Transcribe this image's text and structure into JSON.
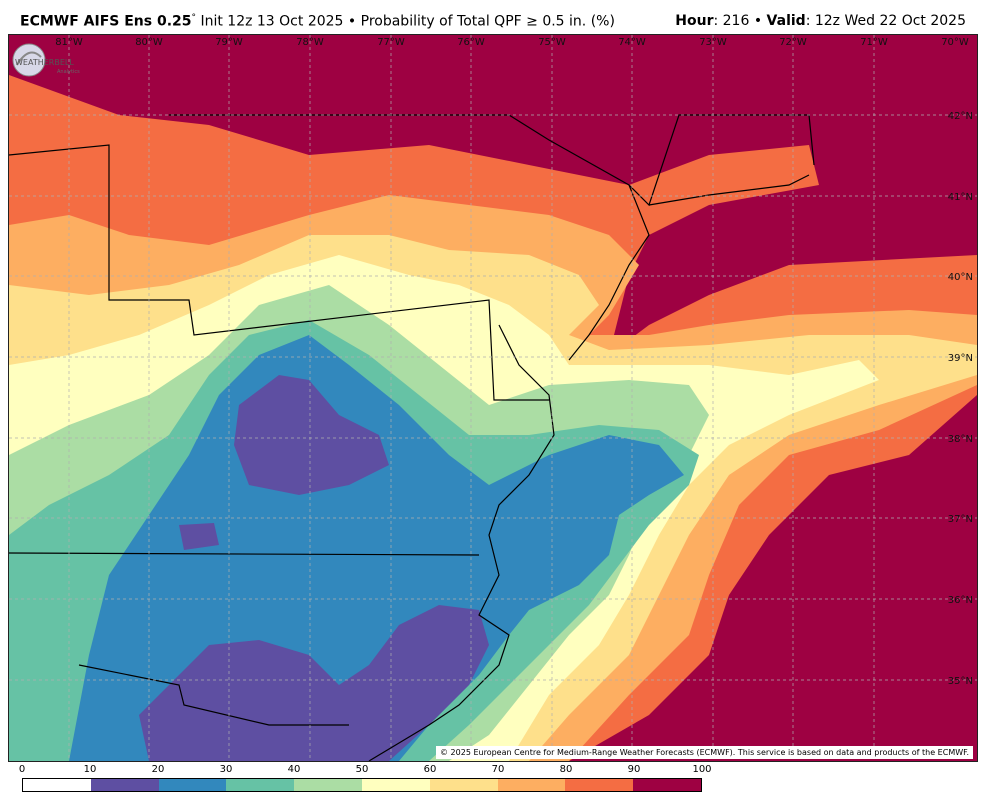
{
  "header": {
    "model": "ECMWF AIFS Ens 0.25",
    "degree": "°",
    "init": "Init 12z 13 Oct 2025",
    "bullet": "•",
    "field": "Probability of Total QPF  ≥  0.5 in. (%)",
    "hour_label": "Hour",
    "hour_value": ": 216",
    "valid_label": "Valid",
    "valid_value": ": 12z Wed 22 Oct 2025"
  },
  "map": {
    "longitudes": [
      "81°W",
      "80°W",
      "79°W",
      "78°W",
      "77°W",
      "76°W",
      "75°W",
      "74°W",
      "73°W",
      "72°W",
      "71°W",
      "70°W"
    ],
    "latitudes": [
      "42°N",
      "41°N",
      "40°N",
      "39°N",
      "38°N",
      "37°N",
      "36°N",
      "35°N"
    ],
    "copyright": "© 2025 European Centre for Medium-Range Weather Forecasts (ECMWF). This service is based on data and products of the ECMWF.",
    "logo_text": "WEATHERBELL",
    "logo_sub": "Analytics"
  },
  "colorbar": {
    "ticks": [
      "0",
      "10",
      "20",
      "30",
      "40",
      "50",
      "60",
      "70",
      "80",
      "90",
      "100"
    ],
    "colors": [
      "#ffffff",
      "#5e4fa2",
      "#3288bd",
      "#66c2a5",
      "#abdda4",
      "#ffffbf",
      "#fee08b",
      "#fdae61",
      "#f46d43",
      "#9e0142"
    ]
  }
}
